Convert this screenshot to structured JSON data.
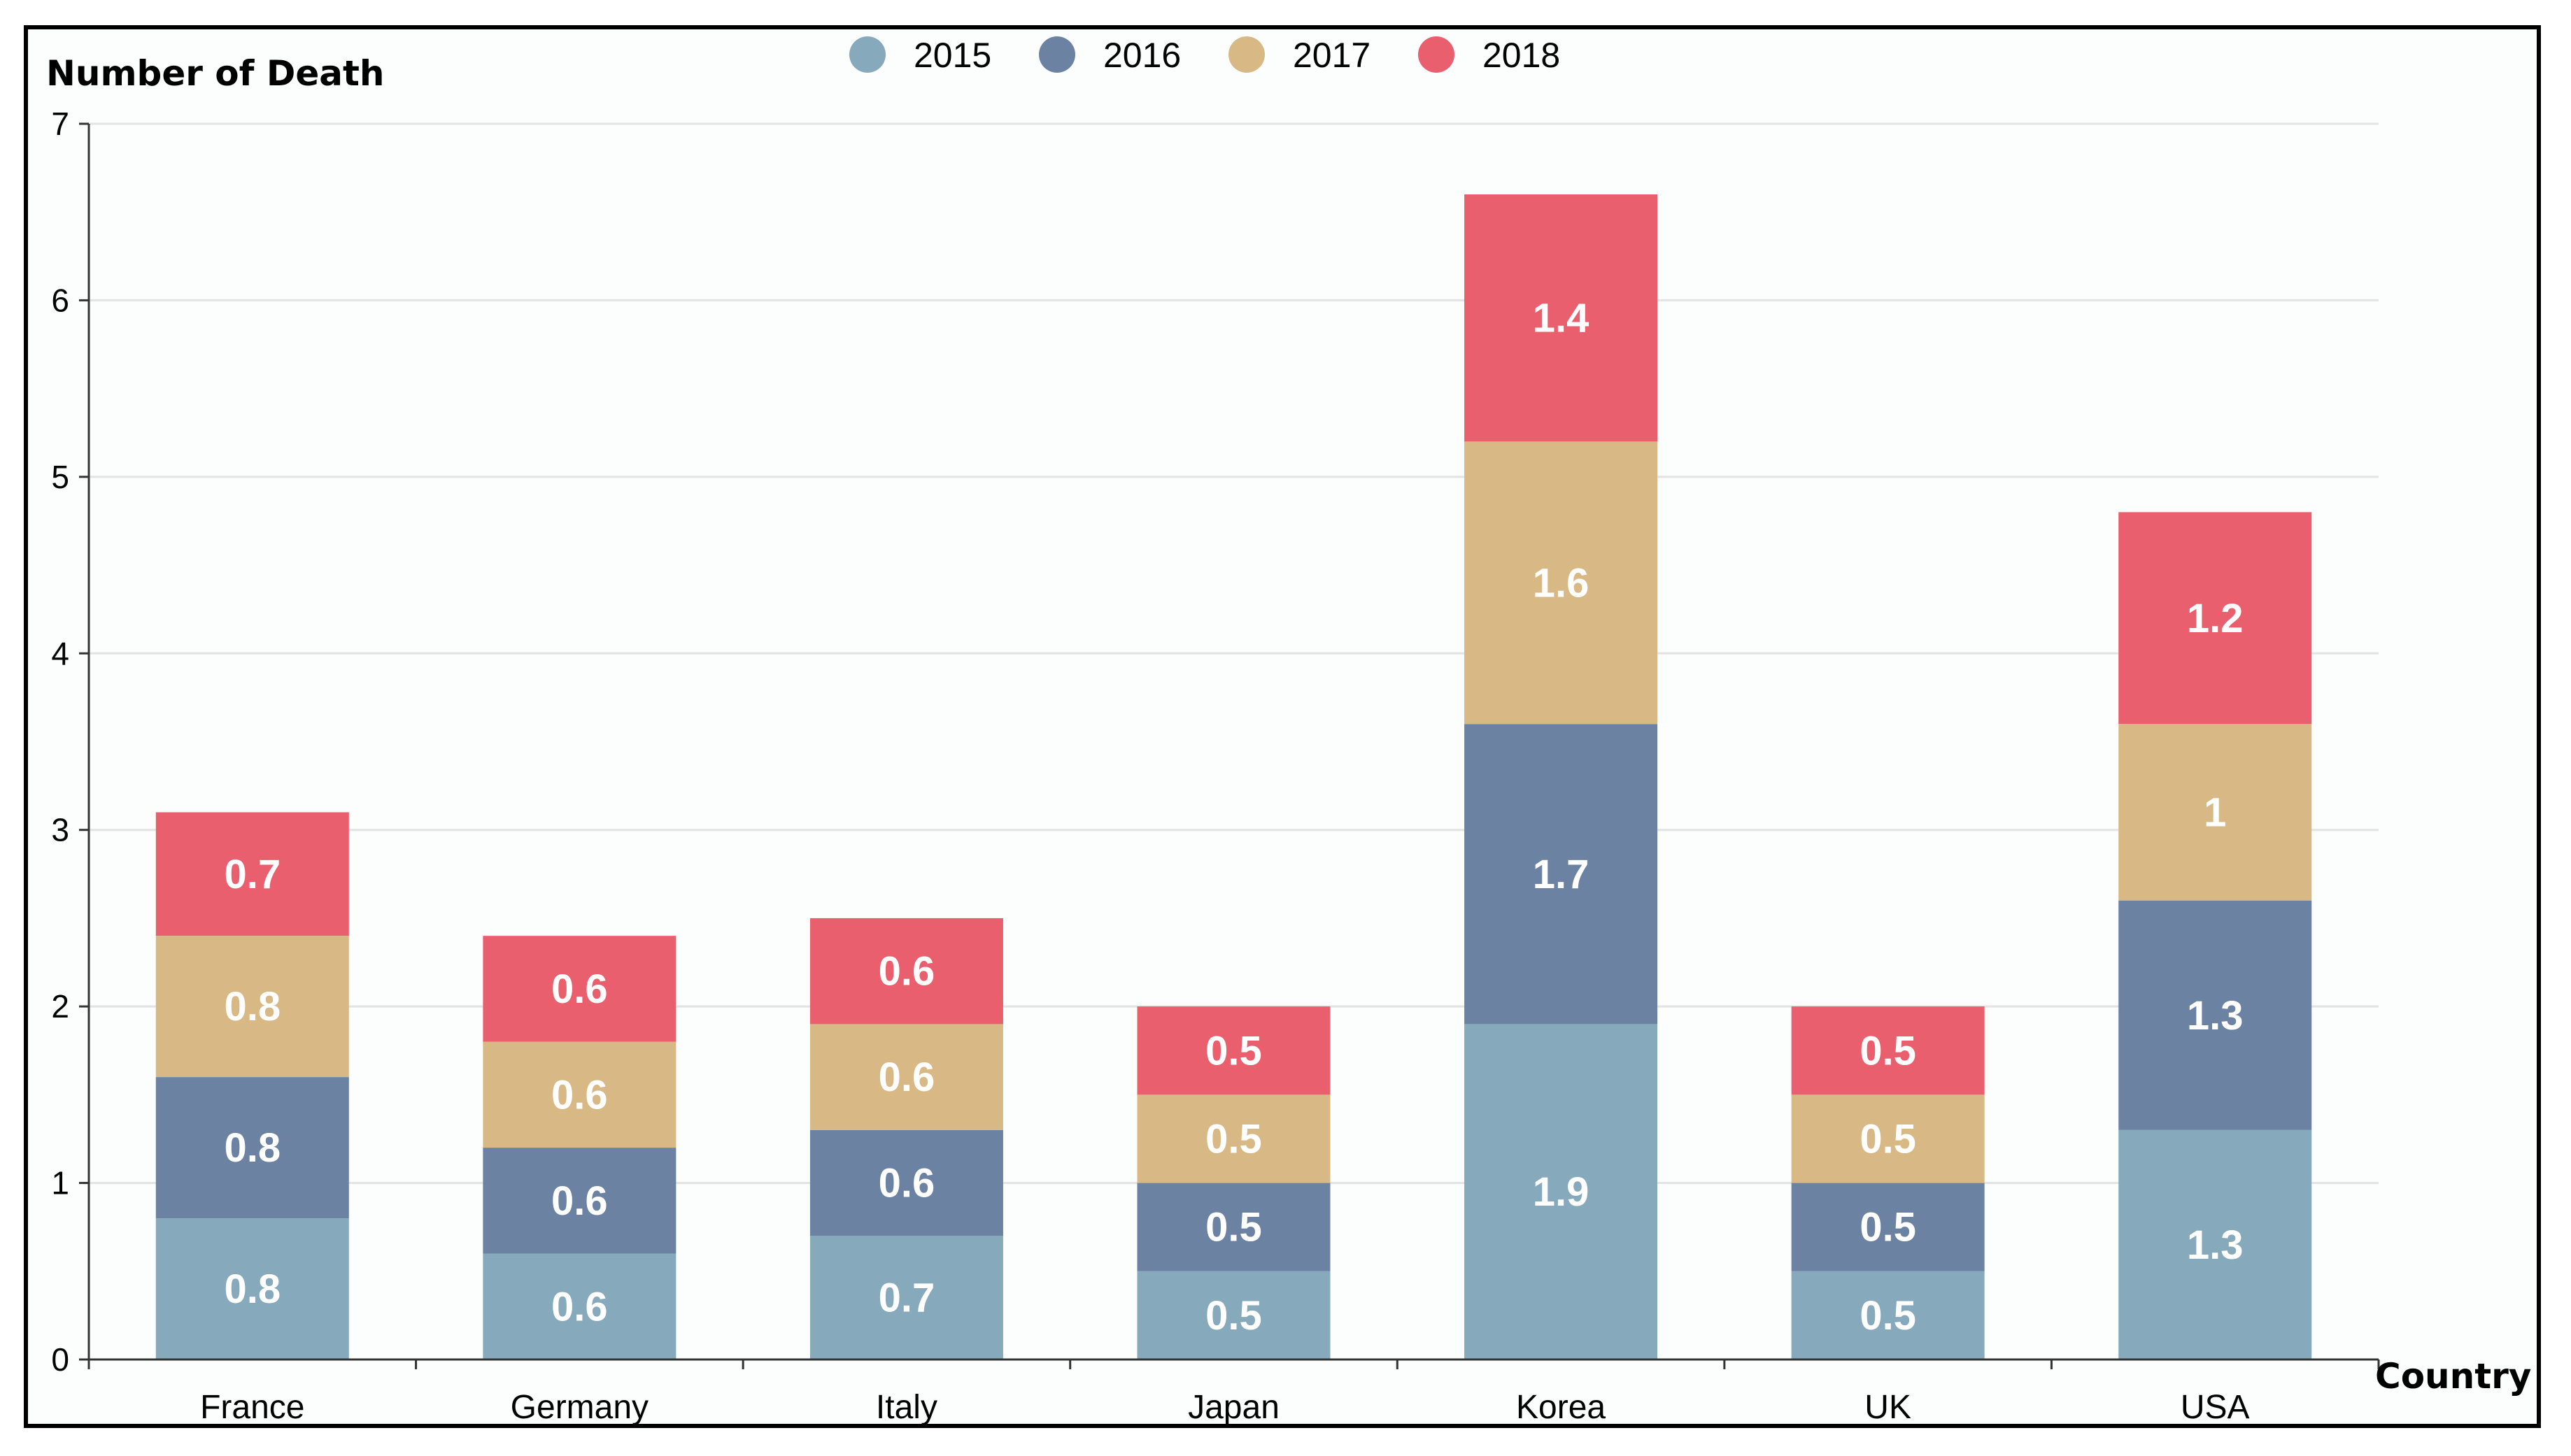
{
  "chart_data": {
    "type": "bar",
    "stacked": true,
    "title": "",
    "xlabel": "Country",
    "ylabel": "Number of Death",
    "ylim": [
      0,
      7
    ],
    "yticks": [
      0,
      1,
      2,
      3,
      4,
      5,
      6,
      7
    ],
    "grid": true,
    "legend_position": "top-center",
    "categories": [
      "France",
      "Germany",
      "Italy",
      "Japan",
      "Korea",
      "UK",
      "USA"
    ],
    "series": [
      {
        "name": "2015",
        "color": "#86aabb",
        "values": [
          0.8,
          0.6,
          0.7,
          0.5,
          1.9,
          0.5,
          1.3
        ]
      },
      {
        "name": "2016",
        "color": "#6b82a2",
        "values": [
          0.8,
          0.6,
          0.6,
          0.5,
          1.7,
          0.5,
          1.3
        ]
      },
      {
        "name": "2017",
        "color": "#d8b985",
        "values": [
          0.8,
          0.6,
          0.6,
          0.5,
          1.6,
          0.5,
          1
        ]
      },
      {
        "name": "2018",
        "color": "#ea5f6e",
        "values": [
          0.7,
          0.6,
          0.6,
          0.5,
          1.4,
          0.5,
          1.2
        ]
      }
    ]
  }
}
